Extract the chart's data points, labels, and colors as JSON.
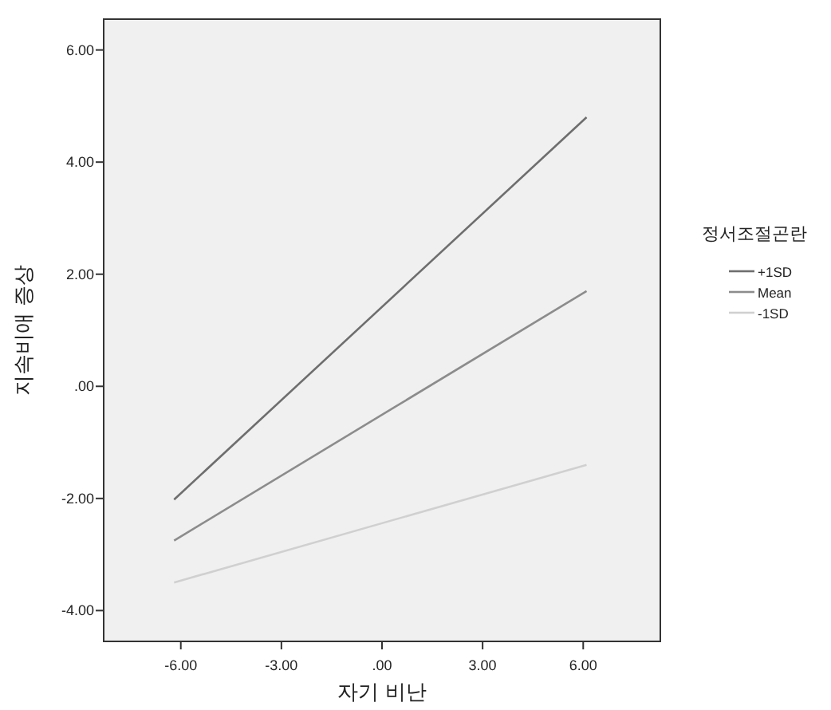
{
  "chart_data": {
    "type": "line",
    "xlabel": "자기 비난",
    "ylabel": "지속비애 증상",
    "legend_title": "정서조절곤란",
    "legend": "right",
    "x": [
      -6.2,
      6.1
    ],
    "series": [
      {
        "name": "+1SD",
        "color": "#6e6e6e",
        "values": [
          -2.02,
          4.8
        ]
      },
      {
        "name": "Mean",
        "color": "#8c8c8c",
        "values": [
          -2.75,
          1.7
        ]
      },
      {
        "name": "-1SD",
        "color": "#d0d0d0",
        "values": [
          -3.5,
          -1.4
        ]
      }
    ],
    "xlim": [
      -8.3,
      8.3
    ],
    "ylim": [
      -4.55,
      6.55
    ],
    "xticks": [
      {
        "value": -6,
        "label": "-6.00"
      },
      {
        "value": -3,
        "label": "-3.00"
      },
      {
        "value": 0,
        "label": ".00"
      },
      {
        "value": 3,
        "label": "3.00"
      },
      {
        "value": 6,
        "label": "6.00"
      }
    ],
    "yticks": [
      {
        "value": -4,
        "label": "-4.00"
      },
      {
        "value": -2,
        "label": "-2.00"
      },
      {
        "value": 0,
        "label": ".00"
      },
      {
        "value": 2,
        "label": "2.00"
      },
      {
        "value": 4,
        "label": "4.00"
      },
      {
        "value": 6,
        "label": "6.00"
      }
    ],
    "grid": false,
    "marker": "none",
    "line_style": "solid"
  }
}
